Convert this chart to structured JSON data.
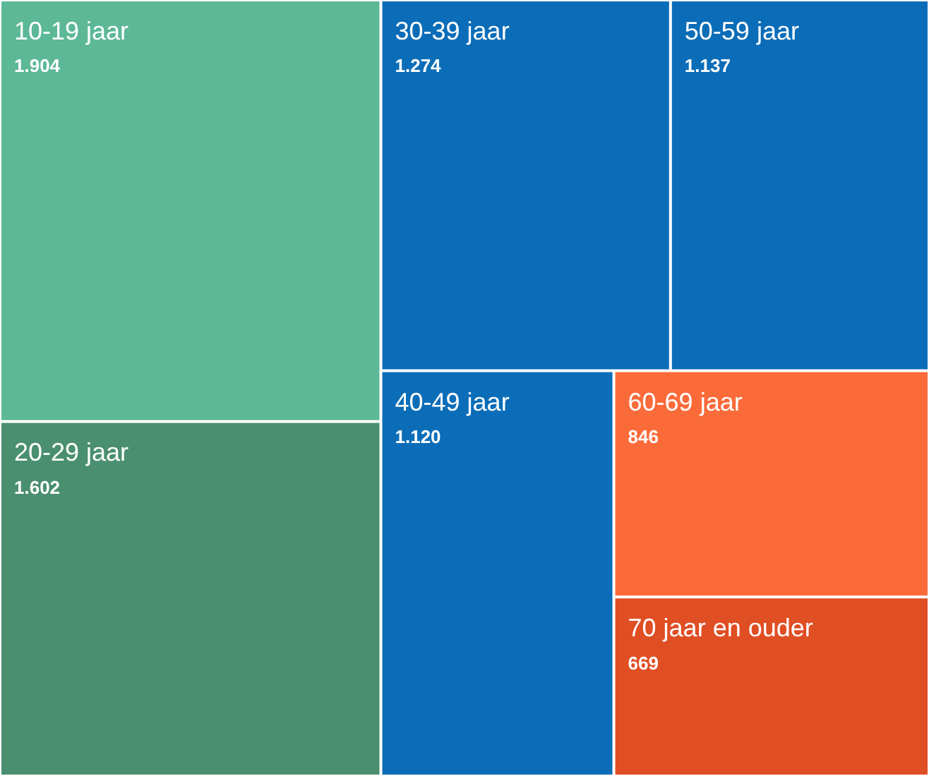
{
  "chart_data": {
    "type": "other",
    "categories": [
      "10-19 jaar",
      "20-29 jaar",
      "30-39 jaar",
      "50-59 jaar",
      "40-49 jaar",
      "60-69 jaar",
      "70 jaar en ouder"
    ],
    "values": [
      1904,
      1602,
      1274,
      1137,
      1120,
      846,
      669
    ],
    "value_labels": [
      "1.904",
      "1.602",
      "1.274",
      "1.137",
      "1.120",
      "846",
      "669"
    ],
    "colors": [
      "#5cb896",
      "#4a8f70",
      "#0b6db8",
      "#0b6db8",
      "#0b6db8",
      "#fb6b3a",
      "#e04e24"
    ]
  }
}
